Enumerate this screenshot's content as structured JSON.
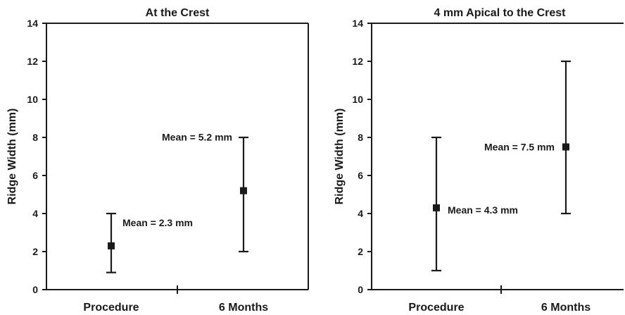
{
  "chart_data": [
    {
      "type": "scatter",
      "title": "At the Crest",
      "ylabel": "Ridge Width (mm)",
      "xlabel": "",
      "categories": [
        "Procedure",
        "6 Months"
      ],
      "ylim": [
        0,
        14
      ],
      "yticks": [
        0,
        2,
        4,
        6,
        8,
        10,
        12,
        14
      ],
      "grid": false,
      "points": [
        {
          "category": "Procedure",
          "mean": 2.3,
          "low": 0.9,
          "high": 4.0,
          "label": "Mean = 2.3 mm",
          "label_side": "right"
        },
        {
          "category": "6 Months",
          "mean": 5.2,
          "low": 2.0,
          "high": 8.0,
          "label": "Mean = 5.2 mm",
          "label_side": "left"
        }
      ]
    },
    {
      "type": "scatter",
      "title": "4 mm Apical to the Crest",
      "ylabel": "Ridge Width (mm)",
      "xlabel": "",
      "categories": [
        "Procedure",
        "6 Months"
      ],
      "ylim": [
        0,
        14
      ],
      "yticks": [
        0,
        2,
        4,
        6,
        8,
        10,
        12,
        14
      ],
      "grid": false,
      "points": [
        {
          "category": "Procedure",
          "mean": 4.3,
          "low": 1.0,
          "high": 8.0,
          "label": "Mean = 4.3 mm",
          "label_side": "right"
        },
        {
          "category": "6 Months",
          "mean": 7.5,
          "low": 4.0,
          "high": 12.0,
          "label": "Mean = 7.5 mm",
          "label_side": "left"
        }
      ]
    }
  ]
}
